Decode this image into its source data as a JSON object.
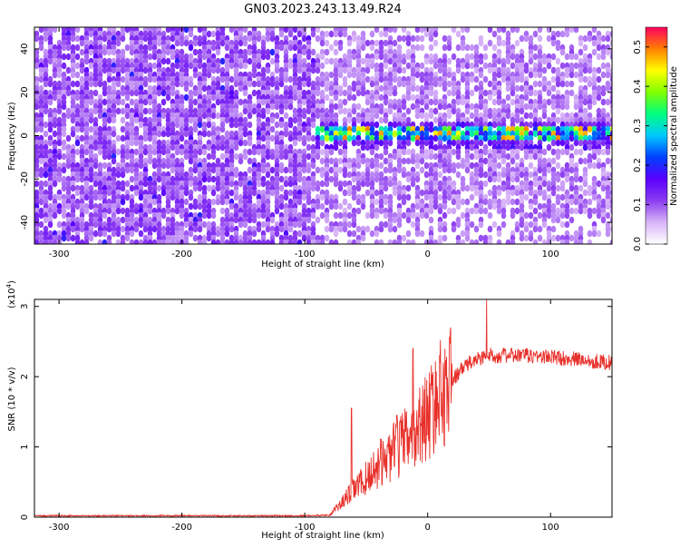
{
  "title": "GN03.2023.243.13.49.R24",
  "chart_data": [
    {
      "type": "heatmap",
      "xlabel": "Height of straight line (km)",
      "ylabel": "Frequency (Hz)",
      "xlim": [
        -320,
        150
      ],
      "ylim": [
        -50,
        50
      ],
      "xticks": [
        -300,
        -200,
        -100,
        0,
        100
      ],
      "xtick_labels": [
        "-300",
        "-200",
        "-100",
        "0",
        "100"
      ],
      "yticks": [
        -40,
        -20,
        0,
        20,
        40
      ],
      "ytick_labels": [
        "-40",
        "-20",
        "0",
        "20",
        "40"
      ],
      "colorbar": {
        "label": "Normalized spectral amplitude",
        "range": [
          0,
          0.55
        ],
        "ticks": [
          0,
          0.1,
          0.2,
          0.3,
          0.4,
          0.5
        ],
        "tick_labels": [
          "0.0",
          "0.1",
          "0.2",
          "0.3",
          "0.4",
          "0.5"
        ],
        "colormap": [
          "#ffffff",
          "#d8b4f8",
          "#8c3cf0",
          "#5a00ff",
          "#0040ff",
          "#00c8ff",
          "#00ff80",
          "#80ff00",
          "#ffff00",
          "#ff8000",
          "#ff0060"
        ]
      },
      "regions": [
        {
          "x_range": [
            -320,
            -90
          ],
          "freq_range": [
            -50,
            50
          ],
          "typical_amplitude": 0.07
        },
        {
          "x_range": [
            -90,
            150
          ],
          "freq_range": [
            -50,
            50
          ],
          "typical_amplitude": 0.05
        },
        {
          "x_range": [
            -85,
            150
          ],
          "freq_range": [
            -3,
            3
          ],
          "typical_amplitude": 0.3,
          "peak_amplitude": 0.5
        }
      ]
    },
    {
      "type": "line",
      "xlabel": "Height of straight line (km)",
      "ylabel": "SNR (10 * v/v)",
      "y_multiplier": "(x10^4)",
      "y_multiplier_base": "(x10",
      "y_multiplier_exp": "4",
      "y_multiplier_close": ")",
      "xlim": [
        -320,
        150
      ],
      "ylim": [
        0,
        3.1
      ],
      "xticks": [
        -300,
        -200,
        -100,
        0,
        100
      ],
      "xtick_labels": [
        "-300",
        "-200",
        "-100",
        "0",
        "100"
      ],
      "yticks": [
        0,
        1,
        2,
        3
      ],
      "ytick_labels": [
        "0",
        "1",
        "2",
        "3"
      ],
      "color": "#e8302a",
      "series": [
        {
          "x": [
            -320,
            -200,
            -100,
            -80,
            -70,
            -60,
            -50,
            -40,
            -30,
            -20,
            -10,
            0,
            10,
            20,
            30,
            40,
            50,
            60,
            80,
            100,
            120,
            150
          ],
          "y": [
            0.02,
            0.02,
            0.02,
            0.03,
            0.2,
            0.4,
            0.55,
            0.75,
            0.9,
            1.05,
            1.25,
            1.45,
            1.75,
            1.95,
            2.15,
            2.25,
            2.3,
            2.3,
            2.3,
            2.28,
            2.25,
            2.2
          ]
        }
      ],
      "spikes": [
        {
          "x": -62,
          "y": 1.55
        },
        {
          "x": -25,
          "y": 1.45
        },
        {
          "x": -12,
          "y": 2.4
        },
        {
          "x": 48,
          "y": 3.1
        },
        {
          "x": 10,
          "y": 2.2
        }
      ]
    }
  ]
}
